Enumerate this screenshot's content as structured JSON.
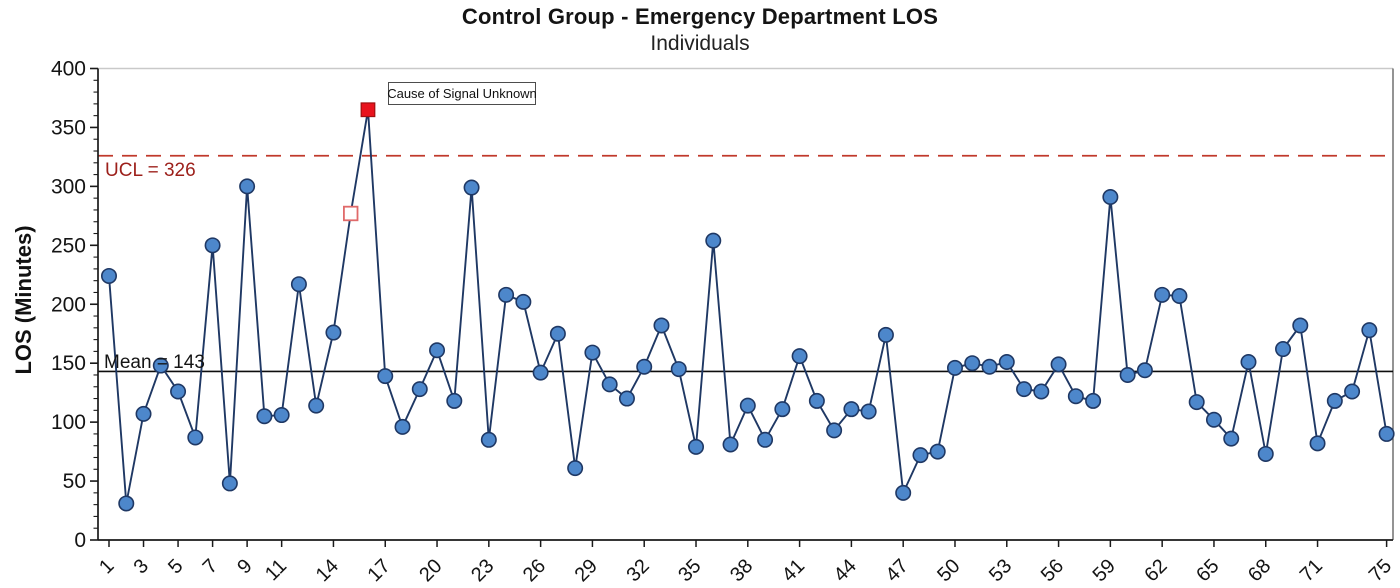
{
  "header": {
    "title": "Control Group - Emergency Department LOS",
    "subtitle": "Individuals"
  },
  "chart_data": {
    "type": "line",
    "chart_kind": "individuals-control-chart",
    "title": "Control Group - Emergency Department LOS",
    "subtitle": "Individuals",
    "xlabel": "",
    "ylabel": "LOS (Minutes)",
    "ylim": [
      0,
      400
    ],
    "y_major_tick_step": 50,
    "y_minor_tick_step": 10,
    "y_tick_labels": [
      "0",
      "50",
      "100",
      "150",
      "200",
      "250",
      "300",
      "350",
      "400"
    ],
    "x_start": 1,
    "x_step": 1,
    "x_tick_labels": [
      "1",
      "3",
      "5",
      "7",
      "9",
      "11",
      "14",
      "17",
      "20",
      "23",
      "26",
      "29",
      "32",
      "35",
      "38",
      "41",
      "44",
      "47",
      "50",
      "53",
      "56",
      "59",
      "62",
      "65",
      "68",
      "71",
      "75"
    ],
    "values": [
      224,
      31,
      107,
      148,
      126,
      87,
      250,
      48,
      300,
      105,
      106,
      217,
      114,
      176,
      277,
      365,
      139,
      96,
      128,
      161,
      118,
      299,
      85,
      208,
      202,
      142,
      175,
      61,
      159,
      132,
      120,
      147,
      182,
      145,
      79,
      254,
      81,
      114,
      85,
      111,
      156,
      118,
      93,
      111,
      109,
      174,
      40,
      72,
      75,
      146,
      150,
      147,
      151,
      128,
      126,
      149,
      122,
      118,
      291,
      140,
      144,
      208,
      207,
      117,
      102,
      86,
      151,
      73,
      162,
      182,
      82,
      118,
      126,
      178,
      90
    ],
    "center_line": {
      "value": 143,
      "label": "Mean = 143"
    },
    "upper_control_limit": {
      "value": 326,
      "label": "UCL = 326"
    },
    "annotation": {
      "text": "Cause of Signal Unknown",
      "attached_point": 16
    },
    "special_markers": [
      {
        "point": 15,
        "marker": "open-square"
      },
      {
        "point": 16,
        "marker": "filled-square-signal"
      }
    ],
    "legend_position": "none",
    "grid": "top-line-only",
    "colors": {
      "point_fill": "#4d87cb",
      "point_stroke": "#1f3864",
      "series_line": "#1f3864",
      "ucl_line": "#c0392b",
      "ucl_text": "#9c1f1a",
      "mean_line": "#0d0d0d",
      "signal_fill": "#e8131d",
      "signal_stroke": "#a01010",
      "ghost_fill": "#ffffff",
      "ghost_stroke": "#e06a6a",
      "grid_line": "#c9c9c9",
      "axis": "#1a1a1a"
    }
  }
}
